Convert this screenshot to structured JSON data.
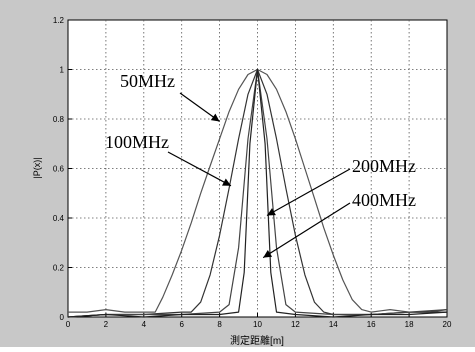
{
  "chart_data": {
    "type": "line",
    "title": "",
    "xlabel": "測定距離[m]",
    "ylabel": "|P(x)|",
    "xlim": [
      0,
      20
    ],
    "ylim": [
      0,
      1.2
    ],
    "x_ticks": [
      "0",
      "2",
      "4",
      "6",
      "8",
      "10",
      "12",
      "14",
      "16",
      "18",
      "20"
    ],
    "y_ticks": [
      "0",
      "0.2",
      "0.4",
      "0.6",
      "0.8",
      "1",
      "1.2"
    ],
    "grid": true,
    "series": [
      {
        "name": "50MHz",
        "x": [
          0,
          1,
          2,
          3,
          4,
          4.6,
          5,
          5.5,
          6,
          6.5,
          7,
          7.5,
          8,
          8.5,
          9,
          9.5,
          10,
          10.5,
          11,
          11.5,
          12,
          12.5,
          13,
          13.5,
          14,
          14.5,
          15,
          15.5,
          16,
          17,
          18,
          19,
          20
        ],
        "y": [
          0.02,
          0.02,
          0.03,
          0.02,
          0.02,
          0.02,
          0.08,
          0.17,
          0.27,
          0.38,
          0.5,
          0.61,
          0.72,
          0.83,
          0.92,
          0.98,
          1.0,
          0.98,
          0.92,
          0.83,
          0.72,
          0.6,
          0.48,
          0.36,
          0.25,
          0.15,
          0.07,
          0.03,
          0.02,
          0.03,
          0.02,
          0.02,
          0.03
        ]
      },
      {
        "name": "100MHz",
        "x": [
          0,
          2,
          4,
          6,
          6.5,
          7,
          7.5,
          8,
          8.5,
          9,
          9.5,
          10,
          10.5,
          11,
          11.5,
          12,
          12.5,
          13,
          13.5,
          14,
          16,
          18,
          20
        ],
        "y": [
          0.0,
          0.01,
          0.01,
          0.02,
          0.02,
          0.06,
          0.17,
          0.33,
          0.52,
          0.72,
          0.9,
          1.0,
          0.9,
          0.72,
          0.52,
          0.33,
          0.17,
          0.06,
          0.02,
          0.01,
          0.01,
          0.02,
          0.02
        ]
      },
      {
        "name": "200MHz",
        "x": [
          0,
          2,
          4,
          6,
          8,
          8.5,
          9,
          9.5,
          10,
          10.5,
          11,
          11.5,
          12,
          14,
          16,
          18,
          20
        ],
        "y": [
          0.0,
          0.01,
          0.01,
          0.01,
          0.02,
          0.05,
          0.28,
          0.72,
          1.0,
          0.72,
          0.28,
          0.05,
          0.02,
          0.01,
          0.01,
          0.02,
          0.03
        ]
      },
      {
        "name": "400MHz",
        "x": [
          0,
          2,
          4,
          6,
          8,
          9,
          9.3,
          9.6,
          10,
          10.4,
          10.7,
          11,
          12,
          14,
          16,
          18,
          20
        ],
        "y": [
          0.0,
          0.01,
          0.0,
          0.01,
          0.01,
          0.02,
          0.18,
          0.7,
          1.0,
          0.7,
          0.18,
          0.02,
          0.01,
          0.0,
          0.01,
          0.01,
          0.02
        ]
      }
    ],
    "annotations": [
      {
        "text": "50MHz",
        "arrow_to": [
          8.0,
          0.79
        ]
      },
      {
        "text": "100MHz",
        "arrow_to": [
          8.6,
          0.53
        ]
      },
      {
        "text": "200MHz",
        "arrow_to": [
          10.5,
          0.41
        ]
      },
      {
        "text": "400MHz",
        "arrow_to": [
          10.3,
          0.24
        ]
      }
    ]
  }
}
